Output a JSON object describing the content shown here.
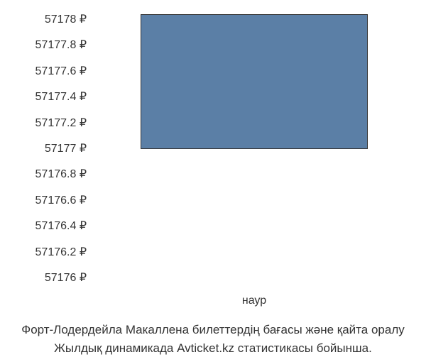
{
  "chart": {
    "type": "bar",
    "y_ticks": [
      "57178 ₽",
      "57177.8 ₽",
      "57177.6 ₽",
      "57177.4 ₽",
      "57177.2 ₽",
      "57177 ₽",
      "57176.8 ₽",
      "57176.6 ₽",
      "57176.4 ₽",
      "57176.2 ₽",
      "57176 ₽"
    ],
    "x_tick": "наур",
    "bar_value": 57178,
    "bar_bottom": 57177,
    "ylim": [
      57176,
      57178
    ],
    "bar_color": "#5b7fa6",
    "bar_border_color": "#333333",
    "background_color": "#ffffff",
    "text_color": "#333333",
    "font_size": 16,
    "bar_top_pct": 0,
    "bar_height_pct": 50
  },
  "caption": {
    "line1": "Форт-Лодердейла Макаллена билеттердің бағасы және қайта оралу",
    "line2": "Жылдық динамикада Avticket.kz статистикасы бойынша."
  }
}
